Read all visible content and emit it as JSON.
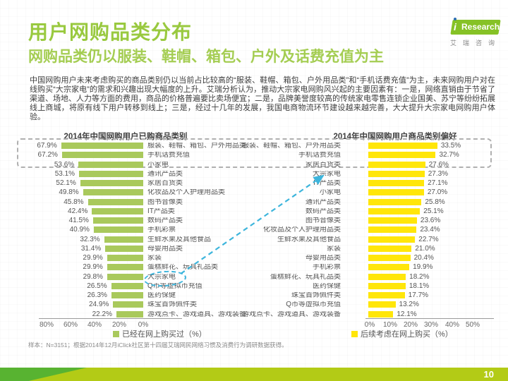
{
  "header": {
    "title": "用户网购品类分布",
    "subtitle": "网购品类仍以服装、鞋帽、箱包、户外及话费充值为主",
    "logo": {
      "i": "i",
      "brand": "Research",
      "subtext": "艾瑞咨询"
    }
  },
  "body_text": "中国网购用户未来考虑购买的商品类别仍以当前占比较高的“服装、鞋帽、箱包、户外用品类”和“手机话费充值”为主，未来网购用户对在线购买“大宗家电”的需求和兴趣出现大幅度的上升。艾瑞分析认为，推动大宗家电网购风兴起的主要因素有：一是，网络直销由于节省了渠道、场地、人力等方面的费用，商品的价格普遍要比卖场便宜；二是，品牌美誉度较高的传统家电零售连锁企业国美、苏宁等纷纷拓展线上商城，将原有线下用户转移到线上；三是，经过十几年的发展，我国电商物流环节建设越来越完善，大大提升大宗家电网购用户体验。",
  "chart_data": [
    {
      "type": "bar",
      "orientation": "horizontal-bars-extend-left",
      "title": "2014年中国网购用户已购商品类别",
      "legend": "已经在网上购买过（%）",
      "bar_color": "#a9c95c",
      "axis_ticks": [
        "80%",
        "60%",
        "40%",
        "20%",
        "0%"
      ],
      "xlim": [
        0,
        80
      ],
      "categories": [
        "服装、鞋帽、箱包、户外用品类",
        "手机话费充值",
        "小家电",
        "通讯产品类",
        "家居百货类",
        "化妆品及个人护理用品类",
        "图书音像类",
        "IT产品类",
        "数码产品类",
        "手机彩票",
        "生鲜水果及其他食品",
        "母婴用品类",
        "家装",
        "蛋糕鲜花、玩具礼品类",
        "大宗家电",
        "Q币等虚拟币充值",
        "医药保健",
        "珠宝首饰佩件类",
        "游戏点卡、游戏道具、游戏装备"
      ],
      "value_labels": [
        "67.9%",
        "67.2%",
        "53.6%",
        "53.1%",
        "52.1%",
        "49.8%",
        "45.8%",
        "42.4%",
        "41.5%",
        "40.9%",
        "32.3%",
        "31.4%",
        "29.9%",
        "29.9%",
        "29.8%",
        "26.5%",
        "26.3%",
        "24.9%",
        "22.2%"
      ],
      "values": [
        67.9,
        67.2,
        53.6,
        53.1,
        52.1,
        49.8,
        45.8,
        42.4,
        41.5,
        40.9,
        32.3,
        31.4,
        29.9,
        29.9,
        29.8,
        26.5,
        26.3,
        24.9,
        22.2
      ],
      "highlight": "大宗家电"
    },
    {
      "type": "bar",
      "orientation": "horizontal-bars-extend-right",
      "title": "2014年中国网购用户商品类别偏好",
      "legend": "后续考虑在网上购买（%）",
      "bar_color": "#ffe60a",
      "axis_ticks": [
        "0%",
        "10%",
        "20%",
        "30%",
        "40%",
        "50%"
      ],
      "xlim": [
        0,
        50
      ],
      "categories": [
        "服装、鞋帽、箱包、户外用品类",
        "手机话费充值",
        "家居百货类",
        "大宗家电",
        "IT产品类",
        "小家电",
        "通讯产品类",
        "数码产品类",
        "图书音像类",
        "化妆品及个人护理用品类",
        "生鲜水果及其他食品",
        "家装",
        "母婴用品类",
        "手机彩票",
        "蛋糕鲜花、玩具礼品类",
        "医药保健",
        "珠宝首饰佩件类",
        "Q币等虚拟币充值",
        "游戏点卡、游戏道具、游戏装备"
      ],
      "value_labels": [
        "33.5%",
        "32.7%",
        "27.6%",
        "27.3%",
        "27.1%",
        "27.0%",
        "25.8%",
        "25.1%",
        "23.6%",
        "23.4%",
        "22.7%",
        "21.0%",
        "20.4%",
        "19.9%",
        "18.2%",
        "18.1%",
        "17.7%",
        "13.2%",
        "12.1%"
      ],
      "values": [
        33.5,
        32.7,
        27.6,
        27.3,
        27.1,
        27.0,
        25.8,
        25.1,
        23.6,
        23.4,
        22.7,
        21.0,
        20.4,
        19.9,
        18.2,
        18.1,
        17.7,
        13.2,
        12.1
      ],
      "highlight": "大宗家电"
    }
  ],
  "footnote": "样本：N=3151；根据2014年12月iClick社区第十四届艾瑞网民网络习惯及消费行为调研数据获得。",
  "page_number": "10",
  "colors": {
    "title_green": "#99c93f",
    "subtitle_green": "#a4cd52",
    "left_bar": "#a9c95c",
    "right_bar": "#ffe60a",
    "annotation_cyan": "#3db5dc",
    "footer_band": "#b3cb16",
    "footer_accent": "#58b331",
    "logo_green": "#86c226"
  }
}
